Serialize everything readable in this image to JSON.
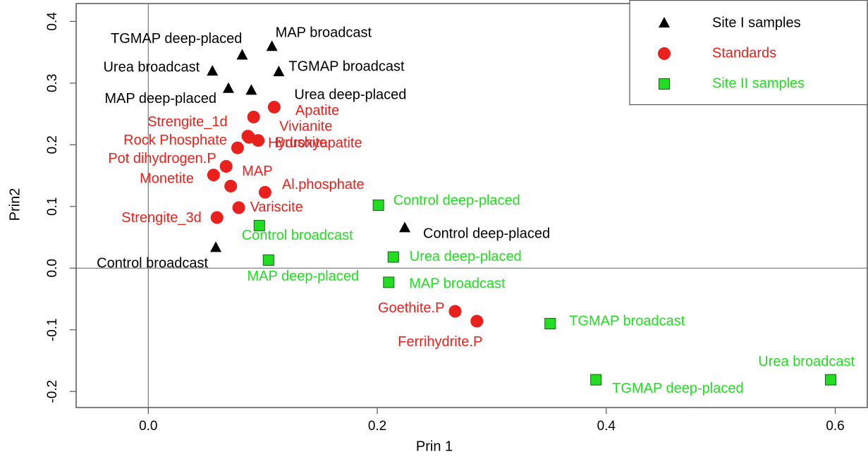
{
  "chart_data": {
    "type": "scatter",
    "xlabel": "Prin 1",
    "ylabel": "Prin2",
    "xlim": [
      -0.063,
      0.628
    ],
    "ylim": [
      -0.226,
      0.429
    ],
    "xticks": [
      {
        "value": 0,
        "label": "0.0"
      },
      0.2,
      0.4,
      0.6
    ],
    "yticks": [
      -0.2,
      -0.1,
      {
        "value": 0,
        "label": "0.0"
      },
      0.1,
      0.2,
      0.3,
      0.4
    ],
    "reference_lines": {
      "x": 0,
      "y": 0
    },
    "legend_position": "upper right",
    "series": [
      {
        "name": "Site I samples",
        "color": "#000000",
        "marker": "triangle",
        "labels": [
          "TGMAP deep-placed",
          "MAP broadcast",
          "Urea broadcast",
          "TGMAP broadcast",
          "MAP deep-placed",
          "Urea deep-placed",
          "Control deep-placed",
          "Control broadcast"
        ],
        "x": [
          0.082,
          0.108,
          0.056,
          0.114,
          0.07,
          0.09,
          0.224,
          0.059
        ],
        "values": [
          0.345,
          0.359,
          0.319,
          0.318,
          0.291,
          0.288,
          0.065,
          0.033
        ]
      },
      {
        "name": "Standards",
        "color": "#e8211c",
        "marker": "circle",
        "labels": [
          "Apatite",
          "Strengite_1d",
          "Vivianite",
          "Brushite",
          "Rock Phosphate",
          "Hydroxyapatite",
          "Pot dihydrogen.P",
          "Monetite",
          "MAP",
          "Al.phosphate",
          "Variscite",
          "Strengite_3d",
          "Goethite.P",
          "Ferrihydrite.P"
        ],
        "x": [
          0.11,
          0.092,
          0.096,
          0.087,
          0.078,
          0.088,
          0.068,
          0.057,
          0.072,
          0.102,
          0.079,
          0.06,
          0.268,
          0.287
        ],
        "values": [
          0.261,
          0.245,
          0.207,
          0.214,
          0.195,
          0.212,
          0.165,
          0.151,
          0.133,
          0.123,
          0.098,
          0.082,
          -0.07,
          -0.086
        ]
      },
      {
        "name": "Site II samples",
        "color": "#22dd22",
        "marker": "square",
        "labels": [
          "Control deep-placed",
          "Control broadcast",
          "Urea deep-placed",
          "MAP deep-placed",
          "MAP broadcast",
          "TGMAP broadcast",
          "TGMAP deep-placed",
          "Urea broadcast"
        ],
        "x": [
          0.201,
          0.097,
          0.214,
          0.105,
          0.21,
          0.351,
          0.391,
          0.596
        ],
        "values": [
          0.102,
          0.069,
          0.018,
          0.013,
          -0.023,
          -0.09,
          -0.181,
          -0.181
        ]
      }
    ]
  }
}
